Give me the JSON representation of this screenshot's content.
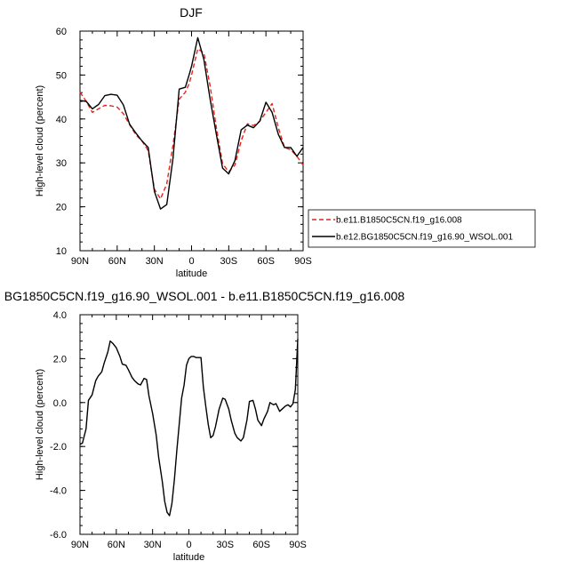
{
  "chart_data": [
    {
      "type": "line",
      "title": "DJF",
      "xlabel": "latitude",
      "ylabel": "High-level cloud (percent)",
      "xlim": [
        90,
        -90
      ],
      "ylim": [
        10,
        60
      ],
      "xticks": [
        90,
        60,
        30,
        0,
        -30,
        -60,
        -90
      ],
      "xtick_labels": [
        "90N",
        "60N",
        "30N",
        "0",
        "30S",
        "60S",
        "90S"
      ],
      "yticks": [
        10,
        20,
        30,
        40,
        50,
        60
      ],
      "ytick_labels": [
        "10",
        "20",
        "30",
        "40",
        "50",
        "60"
      ],
      "legend_position": "right",
      "series": [
        {
          "name": "b.e11.B1850C5CN.f19_g16.008",
          "color": "#e8211c",
          "dash": "dashed",
          "x": [
            90,
            85,
            80,
            75,
            70,
            65,
            60,
            55,
            50,
            45,
            40,
            35,
            30,
            25,
            20,
            15,
            10,
            5,
            2,
            0,
            -5,
            -10,
            -15,
            -20,
            -25,
            -30,
            -35,
            -40,
            -45,
            -50,
            -55,
            -60,
            -65,
            -70,
            -75,
            -80,
            -85,
            -90
          ],
          "y": [
            46.1,
            44.0,
            41.5,
            42.3,
            43.1,
            43.0,
            42.7,
            41.2,
            38.7,
            36.4,
            35.0,
            32.8,
            24.0,
            21.8,
            25.2,
            34.0,
            44.5,
            46.1,
            48.0,
            50.0,
            56.0,
            55.0,
            47.5,
            38.0,
            29.8,
            28.0,
            29.5,
            35.0,
            38.9,
            38.5,
            39.5,
            41.5,
            43.5,
            38.0,
            33.5,
            33.0,
            31.5,
            29.5
          ]
        },
        {
          "name": "b.e12.BG1850C5CN.f19_g16.90_WSOL.001",
          "color": "#000000",
          "dash": "solid",
          "x": [
            90,
            85,
            80,
            75,
            70,
            65,
            60,
            55,
            50,
            45,
            40,
            35,
            30,
            25,
            20,
            15,
            10,
            5,
            2,
            0,
            -5,
            -10,
            -15,
            -20,
            -25,
            -30,
            -35,
            -40,
            -45,
            -50,
            -55,
            -60,
            -65,
            -70,
            -75,
            -80,
            -85,
            -90
          ],
          "y": [
            44.2,
            44.0,
            42.3,
            43.3,
            45.3,
            45.6,
            45.4,
            43.2,
            38.8,
            36.8,
            35.0,
            33.5,
            23.5,
            19.5,
            20.5,
            31.0,
            46.8,
            47.2,
            50.0,
            52.0,
            58.5,
            53.5,
            44.5,
            36.5,
            28.8,
            27.5,
            30.5,
            37.5,
            38.6,
            38.0,
            39.5,
            43.8,
            41.5,
            36.5,
            33.5,
            33.5,
            31.5,
            33.5
          ]
        }
      ]
    },
    {
      "type": "line",
      "title": "BG1850C5CN.f19_g16.90_WSOL.001 - b.e11.B1850C5CN.f19_g16.008",
      "xlabel": "latitude",
      "ylabel": "High-level cloud (percent)",
      "xlim": [
        90,
        -90
      ],
      "ylim": [
        -6,
        4
      ],
      "xticks": [
        90,
        60,
        30,
        0,
        -30,
        -60,
        -90
      ],
      "xtick_labels": [
        "90N",
        "60N",
        "30N",
        "0",
        "30S",
        "60S",
        "90S"
      ],
      "yticks": [
        -6,
        -4,
        -2,
        0,
        2,
        4
      ],
      "ytick_labels": [
        "-6.0",
        "-4.0",
        "-2.0",
        "0.0",
        "2.0",
        "4.0"
      ],
      "series": [
        {
          "color": "#000000",
          "dash": "solid",
          "x": [
            90,
            88,
            85,
            83,
            80,
            77,
            75,
            72,
            70,
            67,
            65,
            63,
            60,
            57,
            55,
            52,
            50,
            47,
            45,
            42,
            40,
            37,
            35,
            33,
            30,
            27,
            25,
            22,
            20,
            18,
            16,
            14,
            12,
            10,
            8,
            6,
            4,
            2,
            0,
            -2,
            -4,
            -6,
            -8,
            -10,
            -12,
            -14,
            -16,
            -18,
            -20,
            -22,
            -25,
            -28,
            -30,
            -33,
            -35,
            -38,
            -40,
            -43,
            -45,
            -48,
            -50,
            -53,
            -55,
            -57,
            -60,
            -62,
            -65,
            -67,
            -70,
            -72,
            -75,
            -77,
            -80,
            -82,
            -84,
            -86,
            -88,
            -90
          ],
          "y": [
            -1.9,
            -1.85,
            -1.2,
            0.1,
            0.35,
            1.0,
            1.2,
            1.4,
            1.8,
            2.3,
            2.8,
            2.7,
            2.5,
            2.1,
            1.75,
            1.7,
            1.5,
            1.15,
            1.0,
            0.85,
            0.8,
            1.1,
            1.05,
            0.3,
            -0.5,
            -1.5,
            -2.5,
            -3.6,
            -4.5,
            -5.0,
            -5.15,
            -4.6,
            -3.5,
            -2.2,
            -1.0,
            0.2,
            0.8,
            1.7,
            2.0,
            2.1,
            2.1,
            2.05,
            2.05,
            2.05,
            0.7,
            -0.2,
            -1.0,
            -1.6,
            -1.5,
            -1.1,
            -0.3,
            0.2,
            0.15,
            -0.3,
            -0.8,
            -1.4,
            -1.6,
            -1.75,
            -1.6,
            -0.8,
            0.05,
            0.1,
            -0.3,
            -0.8,
            -1.05,
            -0.75,
            -0.4,
            0.0,
            -0.1,
            -0.05,
            -0.4,
            -0.3,
            -0.15,
            -0.1,
            -0.2,
            -0.05,
            0.6,
            2.9
          ]
        }
      ]
    }
  ]
}
